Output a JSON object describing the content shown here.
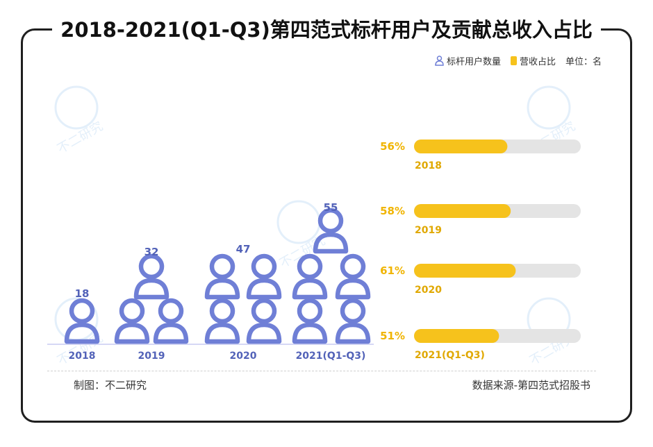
{
  "title": "2018-2021(Q1-Q3)第四范式标杆用户及贡献总收入占比",
  "legend": {
    "users_label": "标杆用户数量",
    "revenue_label": "营收占比",
    "unit_label": "单位：名"
  },
  "footer": {
    "made_by": "制图：不二研究",
    "source": "数据来源-第四范式招股书"
  },
  "watermark": "不二研究",
  "colors": {
    "person": "#6f7fd6",
    "bar_fill": "#f6c21c",
    "bar_track": "#e4e4e4",
    "pct_text": "#f0b400",
    "year_text_left": "#5262b8",
    "year_text_right": "#e0a800"
  },
  "chart_data": [
    {
      "type": "pictogram",
      "series": [
        {
          "name": "标杆用户数量",
          "values": [
            18,
            32,
            47,
            55
          ]
        }
      ],
      "categories": [
        "2018",
        "2019",
        "2020",
        "2021(Q1-Q3)"
      ],
      "value_labels": [
        "18",
        "32",
        "47",
        "55"
      ],
      "icon_counts": [
        1,
        3,
        4,
        5
      ]
    },
    {
      "type": "bar",
      "orientation": "horizontal",
      "series": [
        {
          "name": "营收占比",
          "values": [
            56,
            58,
            61,
            51
          ]
        }
      ],
      "categories": [
        "2018",
        "2019",
        "2020",
        "2021(Q1-Q3)"
      ],
      "value_labels": [
        "56%",
        "58%",
        "61%",
        "51%"
      ],
      "xlim": [
        0,
        100
      ]
    }
  ]
}
